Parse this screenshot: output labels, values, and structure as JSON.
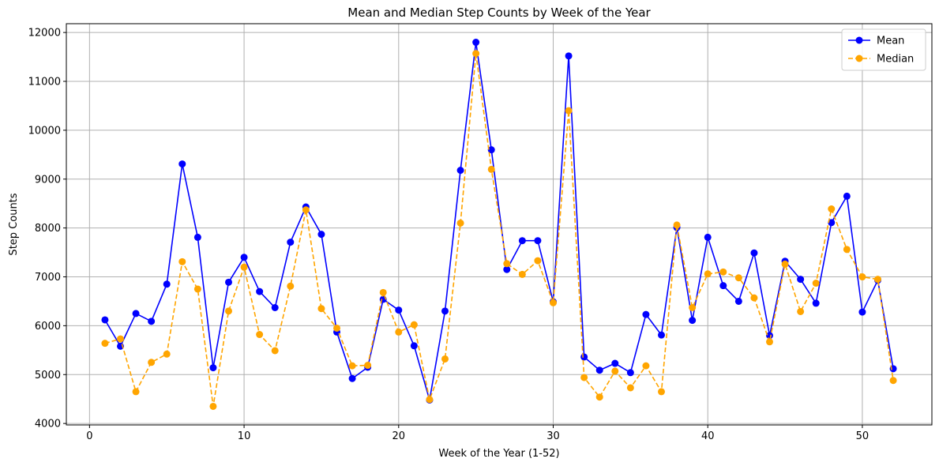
{
  "chart_data": {
    "type": "line",
    "title": "Mean and Median Step Counts by Week of the Year",
    "xlabel": "Week of the Year (1-52)",
    "ylabel": "Step Counts",
    "xlim": [
      -1.5,
      54.5
    ],
    "ylim": [
      3970,
      12180
    ],
    "xticks": [
      0,
      10,
      20,
      30,
      40,
      50
    ],
    "yticks": [
      4000,
      5000,
      6000,
      7000,
      8000,
      9000,
      10000,
      11000,
      12000
    ],
    "grid": true,
    "legend_position": "top-right",
    "x": [
      1,
      2,
      3,
      4,
      5,
      6,
      7,
      8,
      9,
      10,
      11,
      12,
      13,
      14,
      15,
      16,
      17,
      18,
      19,
      20,
      21,
      22,
      23,
      24,
      25,
      26,
      27,
      28,
      29,
      30,
      31,
      32,
      33,
      34,
      35,
      36,
      37,
      38,
      39,
      40,
      41,
      42,
      43,
      44,
      45,
      46,
      47,
      48,
      49,
      50,
      51,
      52
    ],
    "series": [
      {
        "name": "Mean",
        "color": "#0000ff",
        "linestyle": "solid",
        "values": [
          6120,
          5580,
          6250,
          6090,
          6850,
          9310,
          7810,
          5140,
          6890,
          7400,
          6700,
          6370,
          7710,
          8430,
          7870,
          5870,
          4920,
          5150,
          6540,
          6320,
          5590,
          4480,
          6300,
          9180,
          11800,
          9600,
          7150,
          7740,
          7740,
          6490,
          11520,
          5360,
          5090,
          5230,
          5040,
          6230,
          5810,
          8010,
          6110,
          7810,
          6820,
          6500,
          7490,
          5800,
          7320,
          6950,
          6460,
          8110,
          8650,
          6280,
          6930,
          5120
        ]
      },
      {
        "name": "Median",
        "color": "#ffa500",
        "linestyle": "dashed",
        "values": [
          5640,
          5730,
          4650,
          5250,
          5420,
          7310,
          6750,
          4350,
          6300,
          7200,
          5820,
          5490,
          6810,
          8370,
          6350,
          5950,
          5180,
          5190,
          6680,
          5870,
          6020,
          4490,
          5320,
          8100,
          11570,
          9200,
          7270,
          7050,
          7330,
          6470,
          10400,
          4940,
          4540,
          5070,
          4730,
          5180,
          4650,
          8060,
          6370,
          7060,
          7100,
          6980,
          6570,
          5670,
          7260,
          6290,
          6870,
          8390,
          7560,
          7000,
          6950,
          4880
        ]
      }
    ]
  }
}
